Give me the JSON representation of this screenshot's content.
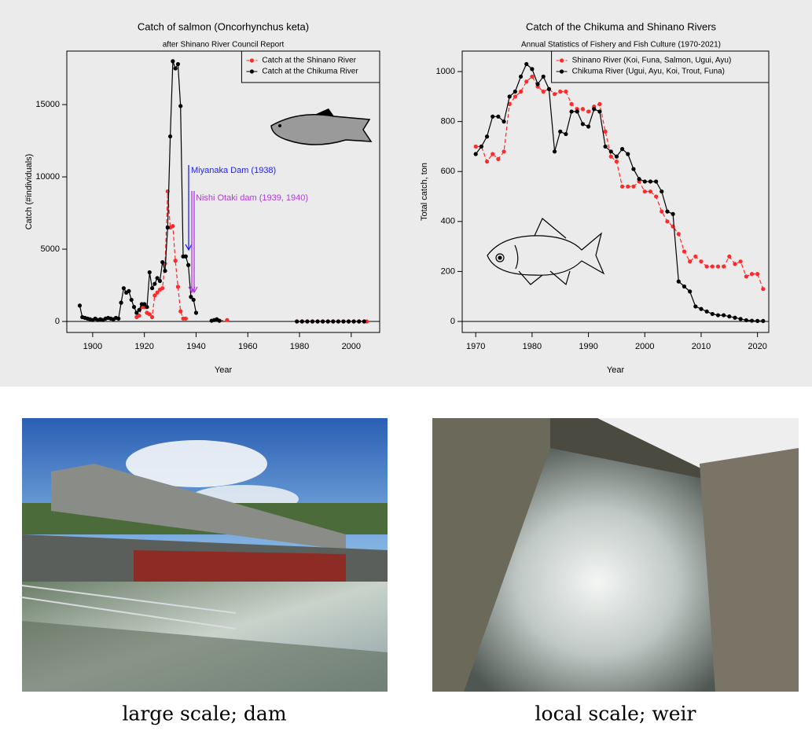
{
  "chart_data": [
    {
      "type": "line",
      "title": "Catch of salmon (Oncorhynchus keta)",
      "subtitle": "after Shinano River Council Report",
      "x_label": "Year",
      "y_label": "Catch (#individuals)",
      "xlim": [
        1890,
        2011
      ],
      "ylim": [
        -760,
        18700
      ],
      "xticks": [
        1900,
        1920,
        1940,
        1960,
        1980,
        2000
      ],
      "yticks": [
        0,
        5000,
        10000,
        15000
      ],
      "legend": "top-right",
      "annotations": [
        "Miyanaka Dam (1938)",
        "Nishi Otaki dam (1939, 1940)"
      ],
      "series": [
        {
          "name": "Catch at the Shinano River",
          "color": "#ff2a2a",
          "linestyle": "dashed",
          "x": [
            1911,
            1912,
            1917,
            1918,
            1919,
            1920,
            1921,
            1922,
            1923,
            1924,
            1925,
            1926,
            1927,
            1928,
            1929,
            1930,
            1931,
            1932,
            1933,
            1934,
            1935,
            1936,
            1937,
            1949,
            1952,
            1953,
            1979,
            1981,
            1983,
            1985,
            1987,
            1989,
            1991,
            1993,
            1995,
            1997,
            1999,
            2001,
            2003,
            2005,
            2006
          ],
          "values": [
            1300,
            null,
            300,
            400,
            1000,
            1000,
            600,
            500,
            300,
            1800,
            2000,
            2200,
            2300,
            4000,
            9000,
            6500,
            6600,
            4200,
            2400,
            700,
            200,
            200,
            null,
            50,
            100,
            null,
            0,
            0,
            0,
            0,
            0,
            0,
            0,
            0,
            0,
            0,
            0,
            0,
            0,
            0,
            0
          ]
        },
        {
          "name": "Catch at the Chikuma River",
          "color": "#000000",
          "linestyle": "solid",
          "x": [
            1895,
            1896,
            1897,
            1898,
            1899,
            1900,
            1901,
            1902,
            1903,
            1904,
            1905,
            1906,
            1907,
            1908,
            1909,
            1910,
            1911,
            1912,
            1913,
            1914,
            1915,
            1916,
            1917,
            1918,
            1919,
            1920,
            1921,
            1922,
            1923,
            1924,
            1925,
            1926,
            1927,
            1928,
            1929,
            1930,
            1931,
            1932,
            1933,
            1934,
            1935,
            1936,
            1937,
            1938,
            1939,
            1940,
            1941,
            1946,
            1947,
            1948,
            1949,
            1950,
            1979,
            1981,
            1983,
            1985,
            1987,
            1989,
            1991,
            1993,
            1995,
            1997,
            1999,
            2001,
            2003,
            2005
          ],
          "values": [
            1100,
            300,
            250,
            200,
            150,
            100,
            200,
            100,
            150,
            100,
            200,
            250,
            200,
            150,
            250,
            200,
            1300,
            2300,
            2000,
            2100,
            1500,
            1000,
            600,
            800,
            1200,
            1200,
            1000,
            3400,
            2300,
            2600,
            3000,
            2800,
            4100,
            3500,
            6500,
            12800,
            18000,
            17500,
            17800,
            14900,
            4500,
            4500,
            3900,
            1700,
            1500,
            600,
            null,
            50,
            100,
            150,
            50,
            null,
            0,
            0,
            0,
            0,
            0,
            0,
            0,
            0,
            0,
            0,
            0,
            0,
            0,
            0
          ]
        }
      ]
    },
    {
      "type": "line",
      "title": "Catch of the Chikuma and Shinano Rivers",
      "subtitle": "Annual Statistics of Fishery and Fish Culture (1970-2021)",
      "x_label": "Year",
      "y_label": "Total catch, ton",
      "xlim": [
        1967.6,
        2022
      ],
      "ylim": [
        -44,
        1082
      ],
      "xticks": [
        1970,
        1980,
        1990,
        2000,
        2010,
        2020
      ],
      "yticks": [
        0,
        200,
        400,
        600,
        800,
        1000
      ],
      "legend": "top-right",
      "series": [
        {
          "name": "Shinano River (Koi, Funa, Salmon, Ugui, Ayu)",
          "color": "#ff2a2a",
          "linestyle": "dashed",
          "x": [
            1970,
            1971,
            1972,
            1973,
            1974,
            1975,
            1976,
            1977,
            1978,
            1979,
            1980,
            1981,
            1982,
            1983,
            1984,
            1985,
            1986,
            1987,
            1988,
            1989,
            1990,
            1991,
            1992,
            1993,
            1994,
            1995,
            1996,
            1997,
            1998,
            1999,
            2000,
            2001,
            2002,
            2003,
            2004,
            2005,
            2006,
            2007,
            2008,
            2009,
            2010,
            2011,
            2012,
            2013,
            2014,
            2015,
            2016,
            2017,
            2018,
            2019,
            2020,
            2021
          ],
          "values": [
            700,
            700,
            640,
            670,
            650,
            680,
            870,
            900,
            920,
            960,
            980,
            940,
            920,
            930,
            910,
            920,
            920,
            870,
            850,
            850,
            840,
            860,
            870,
            760,
            660,
            640,
            540,
            540,
            540,
            560,
            520,
            520,
            500,
            440,
            400,
            380,
            350,
            280,
            240,
            260,
            240,
            220,
            220,
            220,
            220,
            260,
            230,
            240,
            180,
            190,
            190,
            130
          ]
        },
        {
          "name": "Chikuma River (Ugui, Ayu, Koi, Trout, Funa)",
          "color": "#000000",
          "linestyle": "solid",
          "x": [
            1970,
            1971,
            1972,
            1973,
            1974,
            1975,
            1976,
            1977,
            1978,
            1979,
            1980,
            1981,
            1982,
            1983,
            1984,
            1985,
            1986,
            1987,
            1988,
            1989,
            1990,
            1991,
            1992,
            1993,
            1994,
            1995,
            1996,
            1997,
            1998,
            1999,
            2000,
            2001,
            2002,
            2003,
            2004,
            2005,
            2006,
            2007,
            2008,
            2009,
            2010,
            2011,
            2012,
            2013,
            2014,
            2015,
            2016,
            2017,
            2018,
            2019,
            2020,
            2021
          ],
          "values": [
            670,
            700,
            740,
            820,
            820,
            800,
            900,
            920,
            980,
            1030,
            1010,
            950,
            980,
            930,
            680,
            760,
            750,
            840,
            840,
            790,
            780,
            850,
            840,
            700,
            680,
            660,
            690,
            670,
            610,
            570,
            560,
            560,
            560,
            520,
            440,
            430,
            160,
            140,
            120,
            60,
            50,
            40,
            30,
            25,
            25,
            20,
            15,
            10,
            5,
            3,
            2,
            2
          ]
        }
      ]
    }
  ],
  "photos": [
    {
      "caption": "large scale; dam"
    },
    {
      "caption": "local scale; weir"
    }
  ]
}
